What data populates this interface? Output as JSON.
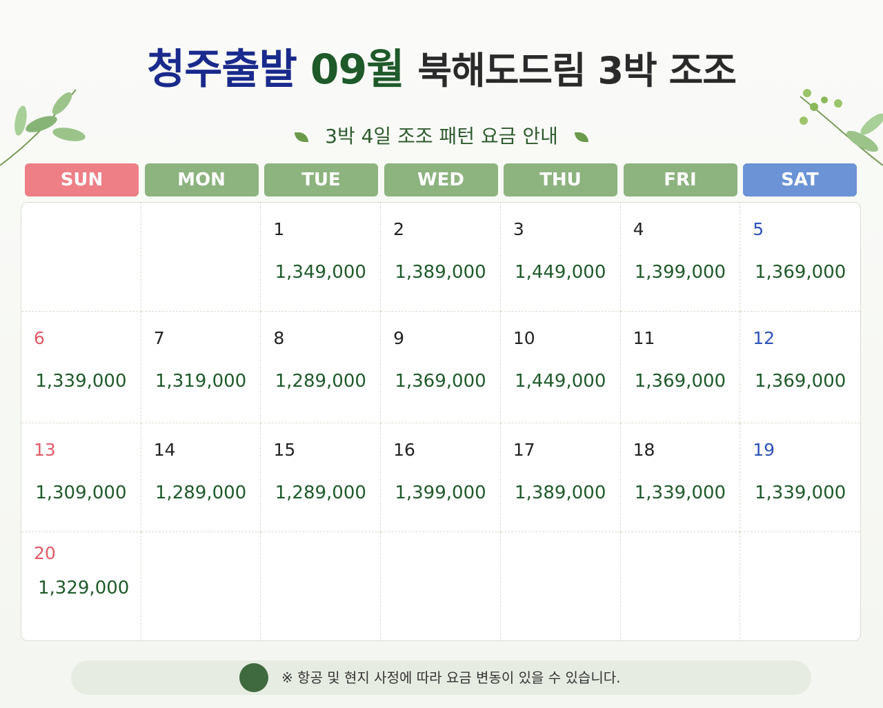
{
  "header": {
    "title_origin": "청주출발",
    "title_month": "09월",
    "title_product": "북해도드림 3박 조조",
    "subtitle": "3박 4일 조조 패턴 요금 안내"
  },
  "weekdays": [
    "SUN",
    "MON",
    "TUE",
    "WED",
    "THU",
    "FRI",
    "SAT"
  ],
  "weeks": [
    [
      null,
      null,
      {
        "day": 1,
        "price": "1,349,000"
      },
      {
        "day": 2,
        "price": "1,389,000"
      },
      {
        "day": 3,
        "price": "1,449,000"
      },
      {
        "day": 4,
        "price": "1,399,000"
      },
      {
        "day": 5,
        "price": "1,369,000"
      }
    ],
    [
      {
        "day": 6,
        "price": "1,339,000"
      },
      {
        "day": 7,
        "price": "1,319,000"
      },
      {
        "day": 8,
        "price": "1,289,000"
      },
      {
        "day": 9,
        "price": "1,369,000"
      },
      {
        "day": 10,
        "price": "1,449,000"
      },
      {
        "day": 11,
        "price": "1,369,000"
      },
      {
        "day": 12,
        "price": "1,369,000"
      }
    ],
    [
      {
        "day": 13,
        "price": "1,309,000"
      },
      {
        "day": 14,
        "price": "1,289,000"
      },
      {
        "day": 15,
        "price": "1,289,000"
      },
      {
        "day": 16,
        "price": "1,399,000"
      },
      {
        "day": 17,
        "price": "1,389,000"
      },
      {
        "day": 18,
        "price": "1,339,000"
      },
      {
        "day": 19,
        "price": "1,339,000"
      }
    ],
    [
      {
        "day": 20,
        "price": "1,329,000"
      },
      null,
      null,
      null,
      null,
      null,
      null
    ]
  ],
  "footer": {
    "notice": "※ 항공 및 현지 사정에 따라 요금 변동이 있을 수 있습니다."
  }
}
